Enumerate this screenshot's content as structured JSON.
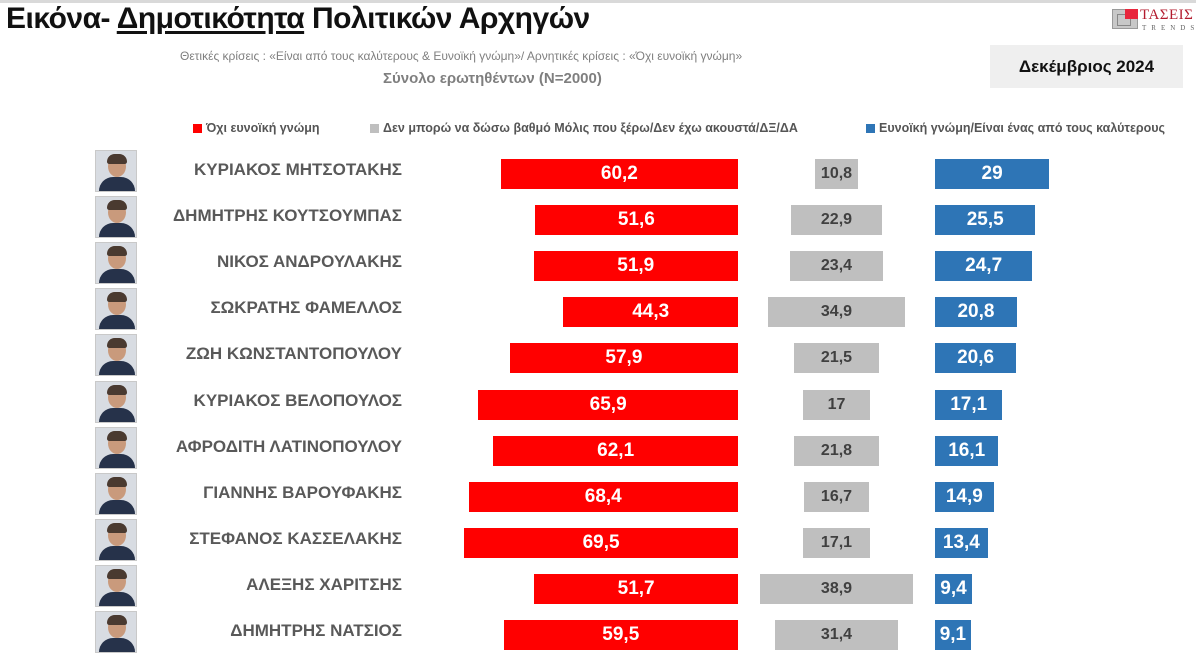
{
  "header": {
    "title_prefix": "Εικόνα- ",
    "title_underlined": "Δημοτικότητα",
    "title_suffix": " Πολιτικών Αρχηγών",
    "subtitle": "Θετικές κρίσεις : «Είναι από τους καλύτερους &  Ευνοϊκή γνώμη»/ Αρνητικές κρίσεις : «Όχι ευνοϊκή γνώμη»",
    "sample": "Σύνολο ερωτηθέντων (Ν=2000)",
    "date": "Δεκέμβριος 2024",
    "logo_text": "ΤΑΣΕΙΣ",
    "logo_subtext": "TRENDS"
  },
  "colors": {
    "negative": "#ff0000",
    "neutral": "#bfbfbf",
    "positive": "#2e75b6"
  },
  "legend": {
    "negative": "Όχι ευνοϊκή γνώμη",
    "neutral": "Δεν μπορώ να δώσω βαθμό Μόλις που ξέρω/Δεν έχω ακουστά/ΔΞ/ΔΑ",
    "positive": "Ευνοϊκή γνώμη/Είναι ένας από τους καλύτερους"
  },
  "chart_data": {
    "type": "bar",
    "title": "Εικόνα- Δημοτικότητα Πολιτικών Αρχηγών",
    "subtitle": "Σύνολο ερωτηθέντων (Ν=2000) — Δεκέμβριος 2024",
    "orientation": "horizontal",
    "categories": [
      "ΚΥΡΙΑΚΟΣ ΜΗΤΣΟΤΑΚΗΣ",
      "ΔΗΜΗΤΡΗΣ ΚΟΥΤΣΟΥΜΠΑΣ",
      "ΝΙΚΟΣ ΑΝΔΡΟΥΛΑΚΗΣ",
      "ΣΩΚΡΑΤΗΣ ΦΑΜΕΛΛΟΣ",
      "ΖΩΗ ΚΩΝΣΤΑΝΤΟΠΟΥΛΟΥ",
      "ΚΥΡΙΑΚΟΣ ΒΕΛΟΠΟΥΛΟΣ",
      "ΑΦΡΟΔΙΤΗ ΛΑΤΙΝΟΠΟΥΛΟΥ",
      "ΓΙΑΝΝΗΣ ΒΑΡΟΥΦΑΚΗΣ",
      "ΣΤΕΦΑΝΟΣ ΚΑΣΣΕΛΑΚΗΣ",
      "ΑΛΕΞΗΣ ΧΑΡΙΤΣΗΣ",
      "ΔΗΜΗΤΡΗΣ ΝΑΤΣΙΟΣ"
    ],
    "series": [
      {
        "name": "Όχι ευνοϊκή γνώμη",
        "color": "#ff0000",
        "values": [
          60.2,
          51.6,
          51.9,
          44.3,
          57.9,
          65.9,
          62.1,
          68.4,
          69.5,
          51.7,
          59.5
        ]
      },
      {
        "name": "Δεν μπορώ να δώσω βαθμό Μόλις που ξέρω/Δεν έχω ακουστά/ΔΞ/ΔΑ",
        "color": "#bfbfbf",
        "values": [
          10.8,
          22.9,
          23.4,
          34.9,
          21.5,
          17,
          21.8,
          16.7,
          17.1,
          38.9,
          31.4
        ]
      },
      {
        "name": "Ευνοϊκή γνώμη/Είναι ένας από τους καλύτερους",
        "color": "#2e75b6",
        "values": [
          29,
          25.5,
          24.7,
          20.8,
          20.6,
          17.1,
          16.1,
          14.9,
          13.4,
          9.4,
          9.1
        ]
      }
    ],
    "xlabel": "",
    "ylabel": "",
    "grid": false,
    "legend_position": "top"
  },
  "rows": [
    {
      "name": "ΚΥΡΙΑΚΟΣ ΜΗΤΣΟΤΑΚΗΣ",
      "neg": 60.2,
      "neg_label": "60,2",
      "neu": 10.8,
      "neu_label": "10,8",
      "pos": 29,
      "pos_label": "29"
    },
    {
      "name": "ΔΗΜΗΤΡΗΣ ΚΟΥΤΣΟΥΜΠΑΣ",
      "neg": 51.6,
      "neg_label": "51,6",
      "neu": 22.9,
      "neu_label": "22,9",
      "pos": 25.5,
      "pos_label": "25,5"
    },
    {
      "name": "ΝΙΚΟΣ ΑΝΔΡΟΥΛΑΚΗΣ",
      "neg": 51.9,
      "neg_label": "51,9",
      "neu": 23.4,
      "neu_label": "23,4",
      "pos": 24.7,
      "pos_label": "24,7"
    },
    {
      "name": "ΣΩΚΡΑΤΗΣ ΦΑΜΕΛΛΟΣ",
      "neg": 44.3,
      "neg_label": "44,3",
      "neu": 34.9,
      "neu_label": "34,9",
      "pos": 20.8,
      "pos_label": "20,8"
    },
    {
      "name": "ΖΩΗ ΚΩΝΣΤΑΝΤΟΠΟΥΛΟΥ",
      "neg": 57.9,
      "neg_label": "57,9",
      "neu": 21.5,
      "neu_label": "21,5",
      "pos": 20.6,
      "pos_label": "20,6"
    },
    {
      "name": "ΚΥΡΙΑΚΟΣ ΒΕΛΟΠΟΥΛΟΣ",
      "neg": 65.9,
      "neg_label": "65,9",
      "neu": 17,
      "neu_label": "17",
      "pos": 17.1,
      "pos_label": "17,1"
    },
    {
      "name": "ΑΦΡΟΔΙΤΗ ΛΑΤΙΝΟΠΟΥΛΟΥ",
      "neg": 62.1,
      "neg_label": "62,1",
      "neu": 21.8,
      "neu_label": "21,8",
      "pos": 16.1,
      "pos_label": "16,1"
    },
    {
      "name": "ΓΙΑΝΝΗΣ ΒΑΡΟΥΦΑΚΗΣ",
      "neg": 68.4,
      "neg_label": "68,4",
      "neu": 16.7,
      "neu_label": "16,7",
      "pos": 14.9,
      "pos_label": "14,9"
    },
    {
      "name": "ΣΤΕΦΑΝΟΣ ΚΑΣΣΕΛΑΚΗΣ",
      "neg": 69.5,
      "neg_label": "69,5",
      "neu": 17.1,
      "neu_label": "17,1",
      "pos": 13.4,
      "pos_label": "13,4"
    },
    {
      "name": "ΑΛΕΞΗΣ ΧΑΡΙΤΣΗΣ",
      "neg": 51.7,
      "neg_label": "51,7",
      "neu": 38.9,
      "neu_label": "38,9",
      "pos": 9.4,
      "pos_label": "9,4"
    },
    {
      "name": "ΔΗΜΗΤΡΗΣ ΝΑΤΣΙΟΣ",
      "neg": 59.5,
      "neg_label": "59,5",
      "neu": 31.4,
      "neu_label": "31,4",
      "pos": 9.1,
      "pos_label": "9,1"
    }
  ]
}
